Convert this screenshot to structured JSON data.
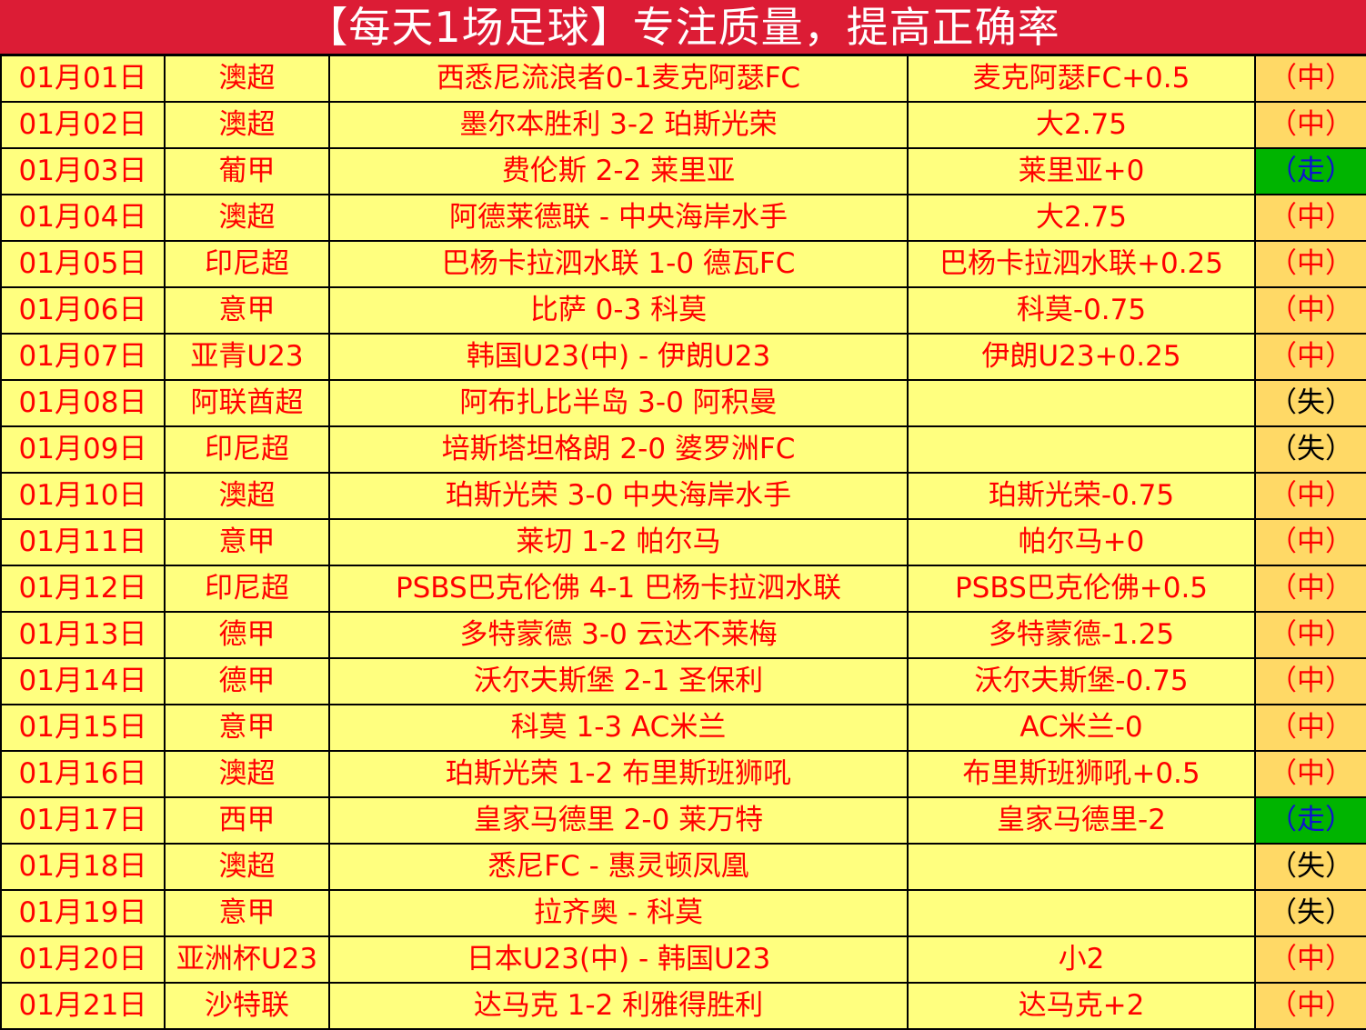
{
  "title": "【每天1场足球】专注质量，提高正确率",
  "colors": {
    "header_bg": "#dc1c35",
    "cell_bg": "#ffff7f",
    "result_bg": "#ffd966",
    "push_bg": "#00b400",
    "text": "#ff0000"
  },
  "rows": [
    {
      "date": "01月01日",
      "league": "澳超",
      "match": "西悉尼流浪者0-1麦克阿瑟FC",
      "pick": "麦克阿瑟FC+0.5",
      "result": "（中）",
      "type": "win"
    },
    {
      "date": "01月02日",
      "league": "澳超",
      "match": "墨尔本胜利 3-2 珀斯光荣",
      "pick": "大2.75",
      "result": "（中）",
      "type": "win"
    },
    {
      "date": "01月03日",
      "league": "葡甲",
      "match": "费伦斯 2-2 莱里亚",
      "pick": "莱里亚+0",
      "result": "（走）",
      "type": "push"
    },
    {
      "date": "01月04日",
      "league": "澳超",
      "match": "阿德莱德联 - 中央海岸水手",
      "pick": "大2.75",
      "result": "（中）",
      "type": "win"
    },
    {
      "date": "01月05日",
      "league": "印尼超",
      "match": "巴杨卡拉泗水联 1-0 德瓦FC",
      "pick": "巴杨卡拉泗水联+0.25",
      "result": "（中）",
      "type": "win"
    },
    {
      "date": "01月06日",
      "league": "意甲",
      "match": "比萨 0-3 科莫",
      "pick": "科莫-0.75",
      "result": "（中）",
      "type": "win"
    },
    {
      "date": "01月07日",
      "league": "亚青U23",
      "match": "韩国U23(中) - 伊朗U23",
      "pick": "伊朗U23+0.25",
      "result": "（中）",
      "type": "win"
    },
    {
      "date": "01月08日",
      "league": "阿联酋超",
      "match": "阿布扎比半岛 3-0 阿积曼",
      "pick": "",
      "result": "（失）",
      "type": "lose"
    },
    {
      "date": "01月09日",
      "league": "印尼超",
      "match": "培斯塔坦格朗 2-0 婆罗洲FC",
      "pick": "",
      "result": "（失）",
      "type": "lose"
    },
    {
      "date": "01月10日",
      "league": "澳超",
      "match": "珀斯光荣 3-0 中央海岸水手",
      "pick": "珀斯光荣-0.75",
      "result": "（中）",
      "type": "win"
    },
    {
      "date": "01月11日",
      "league": "意甲",
      "match": "莱切 1-2 帕尔马",
      "pick": "帕尔马+0",
      "result": "（中）",
      "type": "win"
    },
    {
      "date": "01月12日",
      "league": "印尼超",
      "match": "PSBS巴克伦佛 4-1 巴杨卡拉泗水联",
      "pick": "PSBS巴克伦佛+0.5",
      "result": "（中）",
      "type": "win"
    },
    {
      "date": "01月13日",
      "league": "德甲",
      "match": "多特蒙德 3-0 云达不莱梅",
      "pick": "多特蒙德-1.25",
      "result": "（中）",
      "type": "win"
    },
    {
      "date": "01月14日",
      "league": "德甲",
      "match": "沃尔夫斯堡 2-1 圣保利",
      "pick": "沃尔夫斯堡-0.75",
      "result": "（中）",
      "type": "win"
    },
    {
      "date": "01月15日",
      "league": "意甲",
      "match": "科莫 1-3 AC米兰",
      "pick": "AC米兰-0",
      "result": "（中）",
      "type": "win"
    },
    {
      "date": "01月16日",
      "league": "澳超",
      "match": "珀斯光荣 1-2 布里斯班狮吼",
      "pick": "布里斯班狮吼+0.5",
      "result": "（中）",
      "type": "win"
    },
    {
      "date": "01月17日",
      "league": "西甲",
      "match": "皇家马德里 2-0 莱万特",
      "pick": "皇家马德里-2",
      "result": "（走）",
      "type": "push"
    },
    {
      "date": "01月18日",
      "league": "澳超",
      "match": "悉尼FC - 惠灵顿凤凰",
      "pick": "",
      "result": "（失）",
      "type": "lose"
    },
    {
      "date": "01月19日",
      "league": "意甲",
      "match": "拉齐奥 - 科莫",
      "pick": "",
      "result": "（失）",
      "type": "lose"
    },
    {
      "date": "01月20日",
      "league": "亚洲杯U23",
      "match": "日本U23(中) - 韩国U23",
      "pick": "小2",
      "result": "（中）",
      "type": "win"
    },
    {
      "date": "01月21日",
      "league": "沙特联",
      "match": "达马克 1-2 利雅得胜利",
      "pick": "达马克+2",
      "result": "（中）",
      "type": "win"
    }
  ]
}
